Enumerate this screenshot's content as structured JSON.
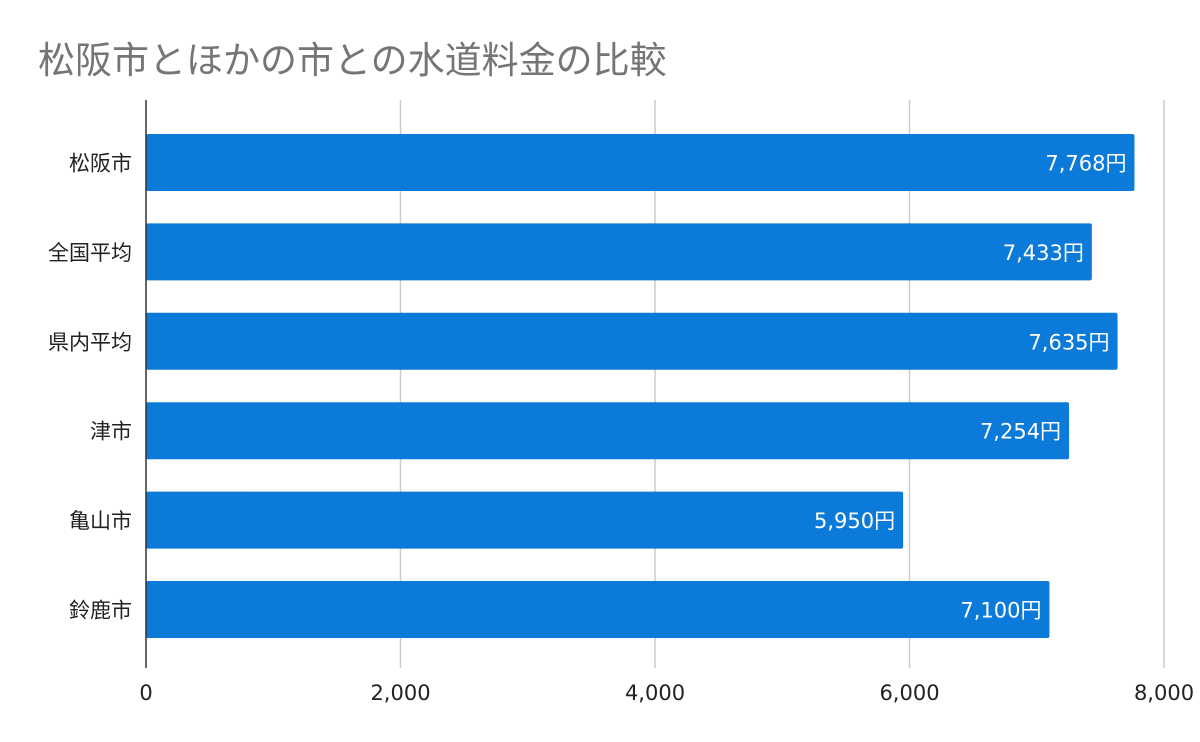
{
  "chart_data": {
    "type": "bar",
    "orientation": "horizontal",
    "title": "松阪市とほかの市との水道料金の比較",
    "categories": [
      "松阪市",
      "全国平均",
      "県内平均",
      "津市",
      "亀山市",
      "鈴鹿市"
    ],
    "values": [
      7768,
      7433,
      7635,
      7254,
      5950,
      7100
    ],
    "data_labels": [
      "7,768円",
      "7,433円",
      "7,635円",
      "7,254円",
      "5,950円",
      "7,100円"
    ],
    "x_ticks": [
      "0",
      "2,000",
      "4,000",
      "6,000",
      "8,000"
    ],
    "x_tick_values": [
      0,
      2000,
      4000,
      6000,
      8000
    ],
    "xlim": [
      0,
      8000
    ],
    "xlabel": "",
    "ylabel": "",
    "grid": true,
    "legend": "none",
    "colors": {
      "bar": "#0b7ad9",
      "grid": "#cccccc",
      "axis": "#333333",
      "title": "#757575"
    }
  }
}
